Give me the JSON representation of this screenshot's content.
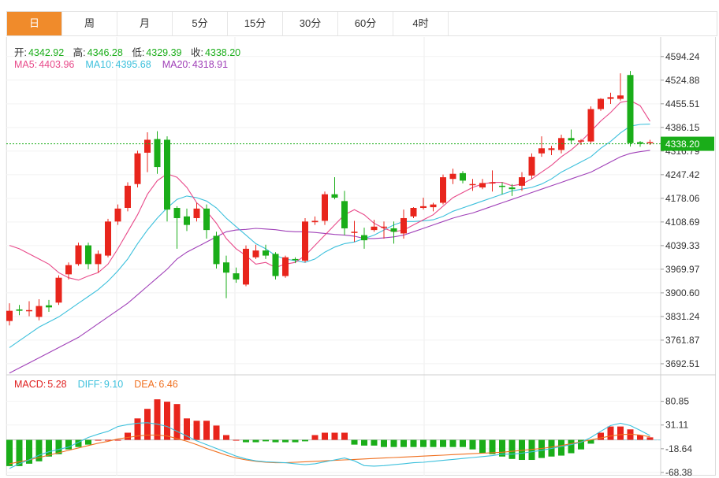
{
  "tabs": [
    "日",
    "周",
    "月",
    "5分",
    "15分",
    "30分",
    "60分",
    "4时"
  ],
  "active_tab": 0,
  "ohlc": {
    "open_label": "开:",
    "open": "4342.92",
    "high_label": "高:",
    "high": "4346.28",
    "low_label": "低:",
    "low": "4329.39",
    "close_label": "收:",
    "close": "4338.20"
  },
  "ma_legend": [
    {
      "label": "MA5:",
      "value": "4403.96",
      "color": "#e84a8a"
    },
    {
      "label": "MA10:",
      "value": "4395.68",
      "color": "#3cc0dc"
    },
    {
      "label": "MA20:",
      "value": "4318.91",
      "color": "#a040b8"
    }
  ],
  "macd_legend": [
    {
      "label": "MACD:",
      "value": "5.28",
      "color": "#e02020"
    },
    {
      "label": "DIFF:",
      "value": "9.10",
      "color": "#3cc0dc"
    },
    {
      "label": "DEA:",
      "value": "6.46",
      "color": "#f07020"
    }
  ],
  "last_price_label": "4338.20",
  "colors": {
    "up": "#e8251c",
    "down": "#1aad19",
    "accent": "#f08b2b",
    "last_price_bg": "#1aad19"
  },
  "chart_data": {
    "type": "candlestick",
    "price_axis": {
      "ylim": [
        3660,
        4640
      ],
      "ticks": [
        4594.24,
        4524.88,
        4455.51,
        4386.15,
        4316.79,
        4247.42,
        4178.06,
        4108.69,
        4039.33,
        3969.97,
        3900.6,
        3831.24,
        3761.87,
        3692.51
      ],
      "tick_labels": [
        "4594.24",
        "4524.88",
        "4455.51",
        "4386.15",
        "4316.79",
        "4247.42",
        "4178.06",
        "4108.69",
        "4039.33",
        "3969.97",
        "3900.60",
        "3831.24",
        "3761.87",
        "3692.51"
      ]
    },
    "last_price": 4338.2,
    "candles": [
      [
        3818,
        3848,
        3870,
        3805
      ],
      [
        3852,
        3848,
        3865,
        3835
      ],
      [
        3848,
        3850,
        3876,
        3832
      ],
      [
        3830,
        3862,
        3882,
        3820
      ],
      [
        3864,
        3858,
        3880,
        3845
      ],
      [
        3872,
        3945,
        3952,
        3865
      ],
      [
        3955,
        3982,
        3990,
        3940
      ],
      [
        3985,
        4040,
        4048,
        3980
      ],
      [
        4040,
        3985,
        4048,
        3970
      ],
      [
        3985,
        4015,
        4025,
        3960
      ],
      [
        4010,
        4110,
        4118,
        4005
      ],
      [
        4110,
        4148,
        4160,
        4100
      ],
      [
        4150,
        4215,
        4225,
        4140
      ],
      [
        4220,
        4310,
        4318,
        4210
      ],
      [
        4312,
        4350,
        4372,
        4255
      ],
      [
        4352,
        4270,
        4375,
        4250
      ],
      [
        4350,
        4145,
        4360,
        4110
      ],
      [
        4150,
        4120,
        4155,
        4030
      ],
      [
        4125,
        4100,
        4148,
        4082
      ],
      [
        4120,
        4148,
        4165,
        4110
      ],
      [
        4148,
        4085,
        4160,
        4060
      ],
      [
        4068,
        3985,
        4080,
        3972
      ],
      [
        3990,
        3960,
        4010,
        3885
      ],
      [
        3958,
        3940,
        3975,
        3930
      ],
      [
        3925,
        4030,
        4040,
        3920
      ],
      [
        4005,
        4025,
        4042,
        4000
      ],
      [
        4025,
        4010,
        4042,
        4000
      ],
      [
        4015,
        3950,
        4020,
        3940
      ],
      [
        3950,
        4005,
        4010,
        3945
      ],
      [
        4000,
        3998,
        4005,
        3988
      ],
      [
        3995,
        4110,
        4120,
        3990
      ],
      [
        4108,
        4112,
        4125,
        4100
      ],
      [
        4112,
        4190,
        4198,
        4100
      ],
      [
        4190,
        4180,
        4240,
        4175
      ],
      [
        4170,
        4090,
        4200,
        4070
      ],
      [
        4080,
        4080,
        4112,
        4050
      ],
      [
        4070,
        4055,
        4092,
        4030
      ],
      [
        4085,
        4095,
        4115,
        4080
      ],
      [
        4092,
        4095,
        4110,
        4060
      ],
      [
        4090,
        4080,
        4110,
        4045
      ],
      [
        4075,
        4120,
        4145,
        4060
      ],
      [
        4125,
        4150,
        4152,
        4120
      ],
      [
        4150,
        4155,
        4180,
        4145
      ],
      [
        4152,
        4160,
        4165,
        4140
      ],
      [
        4165,
        4240,
        4248,
        4160
      ],
      [
        4235,
        4250,
        4265,
        4220
      ],
      [
        4252,
        4230,
        4258,
        4222
      ],
      [
        4218,
        4220,
        4235,
        4200
      ],
      [
        4210,
        4223,
        4235,
        4205
      ],
      [
        4225,
        4225,
        4260,
        4198
      ],
      [
        4215,
        4212,
        4225,
        4190
      ],
      [
        4210,
        4205,
        4220,
        4185
      ],
      [
        4215,
        4240,
        4255,
        4200
      ],
      [
        4245,
        4300,
        4310,
        4235
      ],
      [
        4310,
        4325,
        4360,
        4300
      ],
      [
        4320,
        4325,
        4332,
        4305
      ],
      [
        4320,
        4355,
        4365,
        4310
      ],
      [
        4355,
        4348,
        4380,
        4340
      ],
      [
        4345,
        4348,
        4352,
        4335
      ],
      [
        4345,
        4440,
        4448,
        4340
      ],
      [
        4440,
        4470,
        4472,
        4435
      ],
      [
        4470,
        4475,
        4488,
        4455
      ],
      [
        4470,
        4480,
        4545,
        4465
      ],
      [
        4540,
        4340,
        4552,
        4330
      ],
      [
        4342.92,
        4338.2,
        4346.28,
        4329.39
      ],
      [
        4342.92,
        4342.92,
        4350,
        4335
      ]
    ],
    "ma5": [
      4040,
      4030,
      4015,
      4000,
      3985,
      3960,
      3945,
      3938,
      3950,
      3960,
      3985,
      4030,
      4080,
      4130,
      4190,
      4230,
      4250,
      4240,
      4210,
      4165,
      4140,
      4105,
      4060,
      4030,
      4010,
      3985,
      3990,
      3975,
      3985,
      3990,
      4010,
      4040,
      4070,
      4100,
      4130,
      4145,
      4130,
      4105,
      4090,
      4080,
      4085,
      4100,
      4115,
      4130,
      4155,
      4180,
      4195,
      4210,
      4220,
      4225,
      4225,
      4215,
      4220,
      4235,
      4255,
      4275,
      4300,
      4320,
      4345,
      4375,
      4405,
      4430,
      4460,
      4465,
      4450,
      4404
    ],
    "ma10": [
      3740,
      3760,
      3780,
      3800,
      3815,
      3830,
      3850,
      3870,
      3890,
      3910,
      3935,
      3965,
      4000,
      4045,
      4085,
      4120,
      4150,
      4175,
      4185,
      4180,
      4170,
      4150,
      4120,
      4095,
      4070,
      4045,
      4030,
      4010,
      4000,
      3995,
      3990,
      4000,
      4020,
      4035,
      4045,
      4050,
      4060,
      4070,
      4085,
      4100,
      4110,
      4110,
      4112,
      4115,
      4125,
      4140,
      4150,
      4160,
      4170,
      4180,
      4190,
      4200,
      4205,
      4210,
      4220,
      4235,
      4255,
      4270,
      4285,
      4300,
      4325,
      4345,
      4370,
      4390,
      4395,
      4396
    ],
    "ma20": [
      3665,
      3680,
      3695,
      3710,
      3725,
      3740,
      3755,
      3770,
      3790,
      3810,
      3830,
      3850,
      3870,
      3895,
      3920,
      3945,
      3970,
      4000,
      4020,
      4035,
      4050,
      4065,
      4080,
      4085,
      4087,
      4090,
      4088,
      4086,
      4082,
      4080,
      4080,
      4078,
      4075,
      4072,
      4070,
      4067,
      4060,
      4060,
      4062,
      4065,
      4070,
      4080,
      4090,
      4100,
      4110,
      4120,
      4128,
      4135,
      4145,
      4155,
      4165,
      4175,
      4185,
      4195,
      4205,
      4215,
      4225,
      4235,
      4245,
      4255,
      4270,
      4285,
      4300,
      4310,
      4315,
      4319
    ],
    "macd_axis": {
      "ylim": [
        -75,
        100
      ],
      "ticks": [
        80.85,
        31.11,
        -18.64,
        -68.38
      ],
      "tick_labels": [
        "80.85",
        "31.11",
        "-18.64",
        "-68.38"
      ]
    },
    "macd": [
      -55,
      -55,
      -50,
      -45,
      -35,
      -30,
      -20,
      -15,
      -10,
      0,
      0,
      0,
      15,
      45,
      65,
      85,
      80,
      75,
      45,
      40,
      40,
      30,
      10,
      0,
      -5,
      -5,
      -3,
      -5,
      -5,
      -5,
      -3,
      10,
      15,
      15,
      15,
      -10,
      -12,
      -12,
      -15,
      -15,
      -15,
      -15,
      -15,
      -15,
      -15,
      -15,
      -15,
      -20,
      -28,
      -30,
      -35,
      -40,
      -42,
      -42,
      -38,
      -35,
      -33,
      -28,
      -20,
      -8,
      15,
      28,
      28,
      22,
      10,
      5.28
    ],
    "diff": [
      -60,
      -50,
      -42,
      -32,
      -25,
      -20,
      -15,
      -5,
      5,
      12,
      18,
      28,
      32,
      35,
      36,
      33,
      28,
      18,
      8,
      -2,
      -10,
      -18,
      -26,
      -34,
      -40,
      -44,
      -46,
      -47,
      -48,
      -50,
      -52,
      -50,
      -46,
      -42,
      -38,
      -44,
      -54,
      -55,
      -54,
      -52,
      -50,
      -48,
      -47,
      -45,
      -43,
      -41,
      -39,
      -37,
      -35,
      -33,
      -30,
      -30,
      -28,
      -25,
      -22,
      -18,
      -14,
      -10,
      -5,
      5,
      18,
      30,
      35,
      30,
      20,
      9.1
    ],
    "dea": [
      -50,
      -46,
      -42,
      -37,
      -32,
      -27,
      -22,
      -17,
      -12,
      -7,
      -3,
      2,
      5,
      8,
      10,
      10,
      8,
      3,
      -3,
      -10,
      -18,
      -25,
      -32,
      -38,
      -42,
      -45,
      -47,
      -48,
      -48,
      -47,
      -46,
      -45,
      -44,
      -43,
      -42,
      -41,
      -40,
      -39,
      -38,
      -37,
      -36,
      -35,
      -34,
      -33,
      -32,
      -31,
      -30,
      -29,
      -28,
      -27,
      -26,
      -24,
      -22,
      -20,
      -18,
      -15,
      -12,
      -8,
      -4,
      0,
      4,
      8,
      11,
      12,
      10,
      6.46
    ]
  }
}
